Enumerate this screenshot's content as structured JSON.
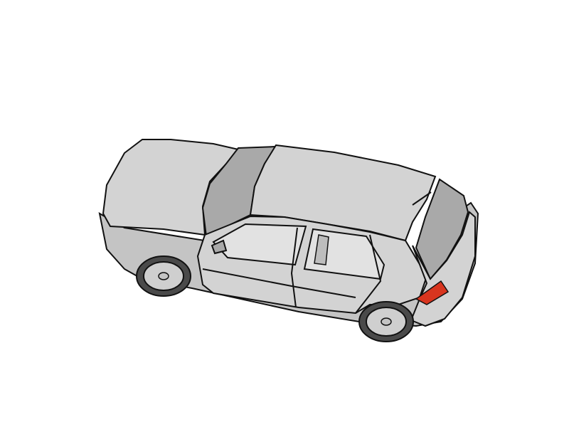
{
  "scene": {
    "subject": "car-illustration",
    "background_color": "#ffffff",
    "colors": {
      "body": "#d3d3d3",
      "body_shade": "#c4c4c4",
      "glass": "#a9a9a9",
      "glass_light": "#bdbdbd",
      "interior": "#e2e2e2",
      "outline": "#111111",
      "tail_light": "#d8351f",
      "wheel_rim": "#cfcfcf",
      "tire": "#4a4a4a"
    }
  }
}
